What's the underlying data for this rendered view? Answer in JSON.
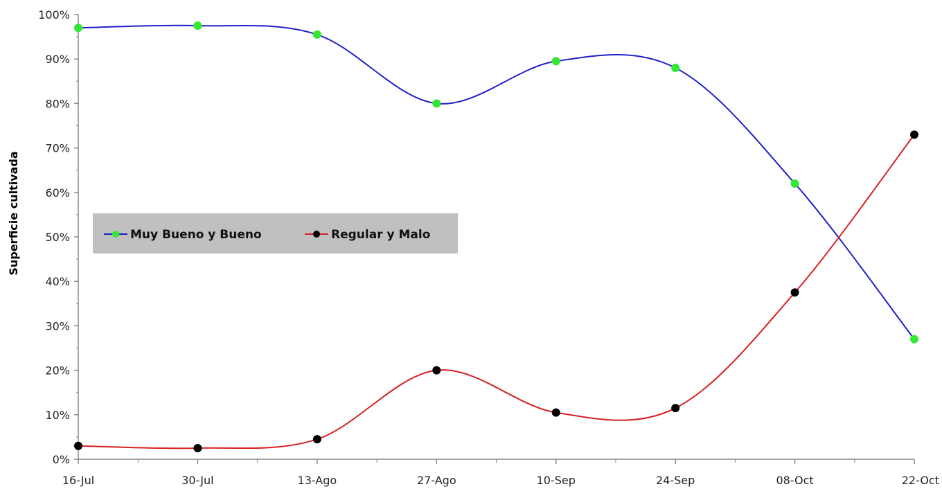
{
  "chart_data": {
    "type": "line",
    "title": "",
    "xlabel": "",
    "ylabel": "Superficie cultivada",
    "categories": [
      "16-Jul",
      "30-Jul",
      "13-Ago",
      "27-Ago",
      "10-Sep",
      "24-Sep",
      "08-Oct",
      "22-Oct"
    ],
    "ylim": [
      0,
      100
    ],
    "yticks": [
      "0%",
      "10%",
      "20%",
      "30%",
      "40%",
      "50%",
      "60%",
      "70%",
      "80%",
      "90%",
      "100%"
    ],
    "grid": false,
    "smooth": true,
    "legend_position": "center-left",
    "series": [
      {
        "name": "Muy Bueno y Bueno",
        "values": [
          97,
          97.5,
          95.5,
          80,
          89.5,
          88,
          62,
          27
        ],
        "line_color": "#2020c8",
        "marker_color": "#33e833"
      },
      {
        "name": "Regular y Malo",
        "values": [
          3,
          2.5,
          4.5,
          20,
          10.5,
          11.5,
          37.5,
          73
        ],
        "line_color": "#d82020",
        "marker_color": "#000000"
      }
    ],
    "legend_bg": "#c0c0c0"
  }
}
